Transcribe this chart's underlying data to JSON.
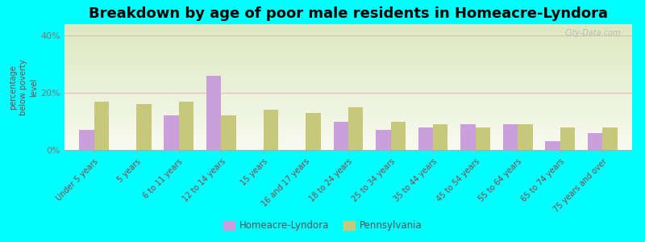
{
  "title": "Breakdown by age of poor male residents in Homeacre-Lyndora",
  "ylabel": "percentage\nbelow poverty\nlevel",
  "categories": [
    "Under 5 years",
    "5 years",
    "6 to 11 years",
    "12 to 14 years",
    "15 years",
    "16 and 17 years",
    "18 to 24 years",
    "25 to 34 years",
    "35 to 44 years",
    "45 to 54 years",
    "55 to 64 years",
    "65 to 74 years",
    "75 years and over"
  ],
  "homeacre_values": [
    7,
    0,
    12,
    26,
    0,
    0,
    10,
    7,
    8,
    9,
    9,
    3,
    6
  ],
  "pennsylvania_values": [
    17,
    16,
    17,
    12,
    14,
    13,
    15,
    10,
    9,
    8,
    9,
    8,
    8
  ],
  "homeacre_color": "#c9a0dc",
  "pennsylvania_color": "#c8c87a",
  "ylim": [
    0,
    44
  ],
  "yticks": [
    0,
    20,
    40
  ],
  "ytick_labels": [
    "0%",
    "20%",
    "40%"
  ],
  "background_color": "#eef2dc",
  "outer_background": "#00ffff",
  "legend_homeacre": "Homeacre-Lyndora",
  "legend_pennsylvania": "Pennsylvania",
  "title_fontsize": 13,
  "watermark": "City-Data.com"
}
